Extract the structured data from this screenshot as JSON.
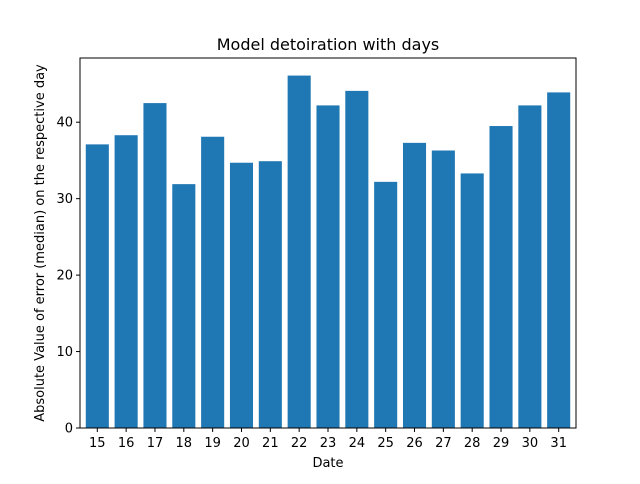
{
  "chart_data": {
    "type": "bar",
    "title": "Model detoiration with days",
    "xlabel": "Date",
    "ylabel": "Absolute Value of error (median) on the respective day",
    "categories": [
      "15",
      "16",
      "17",
      "18",
      "19",
      "20",
      "21",
      "22",
      "23",
      "24",
      "25",
      "26",
      "27",
      "28",
      "29",
      "30",
      "31"
    ],
    "values": [
      37.1,
      38.3,
      42.5,
      31.9,
      38.1,
      34.7,
      34.9,
      46.1,
      42.2,
      44.1,
      32.2,
      37.3,
      36.3,
      33.3,
      39.5,
      42.2,
      43.9
    ],
    "ylim": [
      0,
      48.4
    ],
    "yticks": [
      0,
      10,
      20,
      30,
      40
    ],
    "bar_color": "#1f77b4",
    "grid": false
  }
}
